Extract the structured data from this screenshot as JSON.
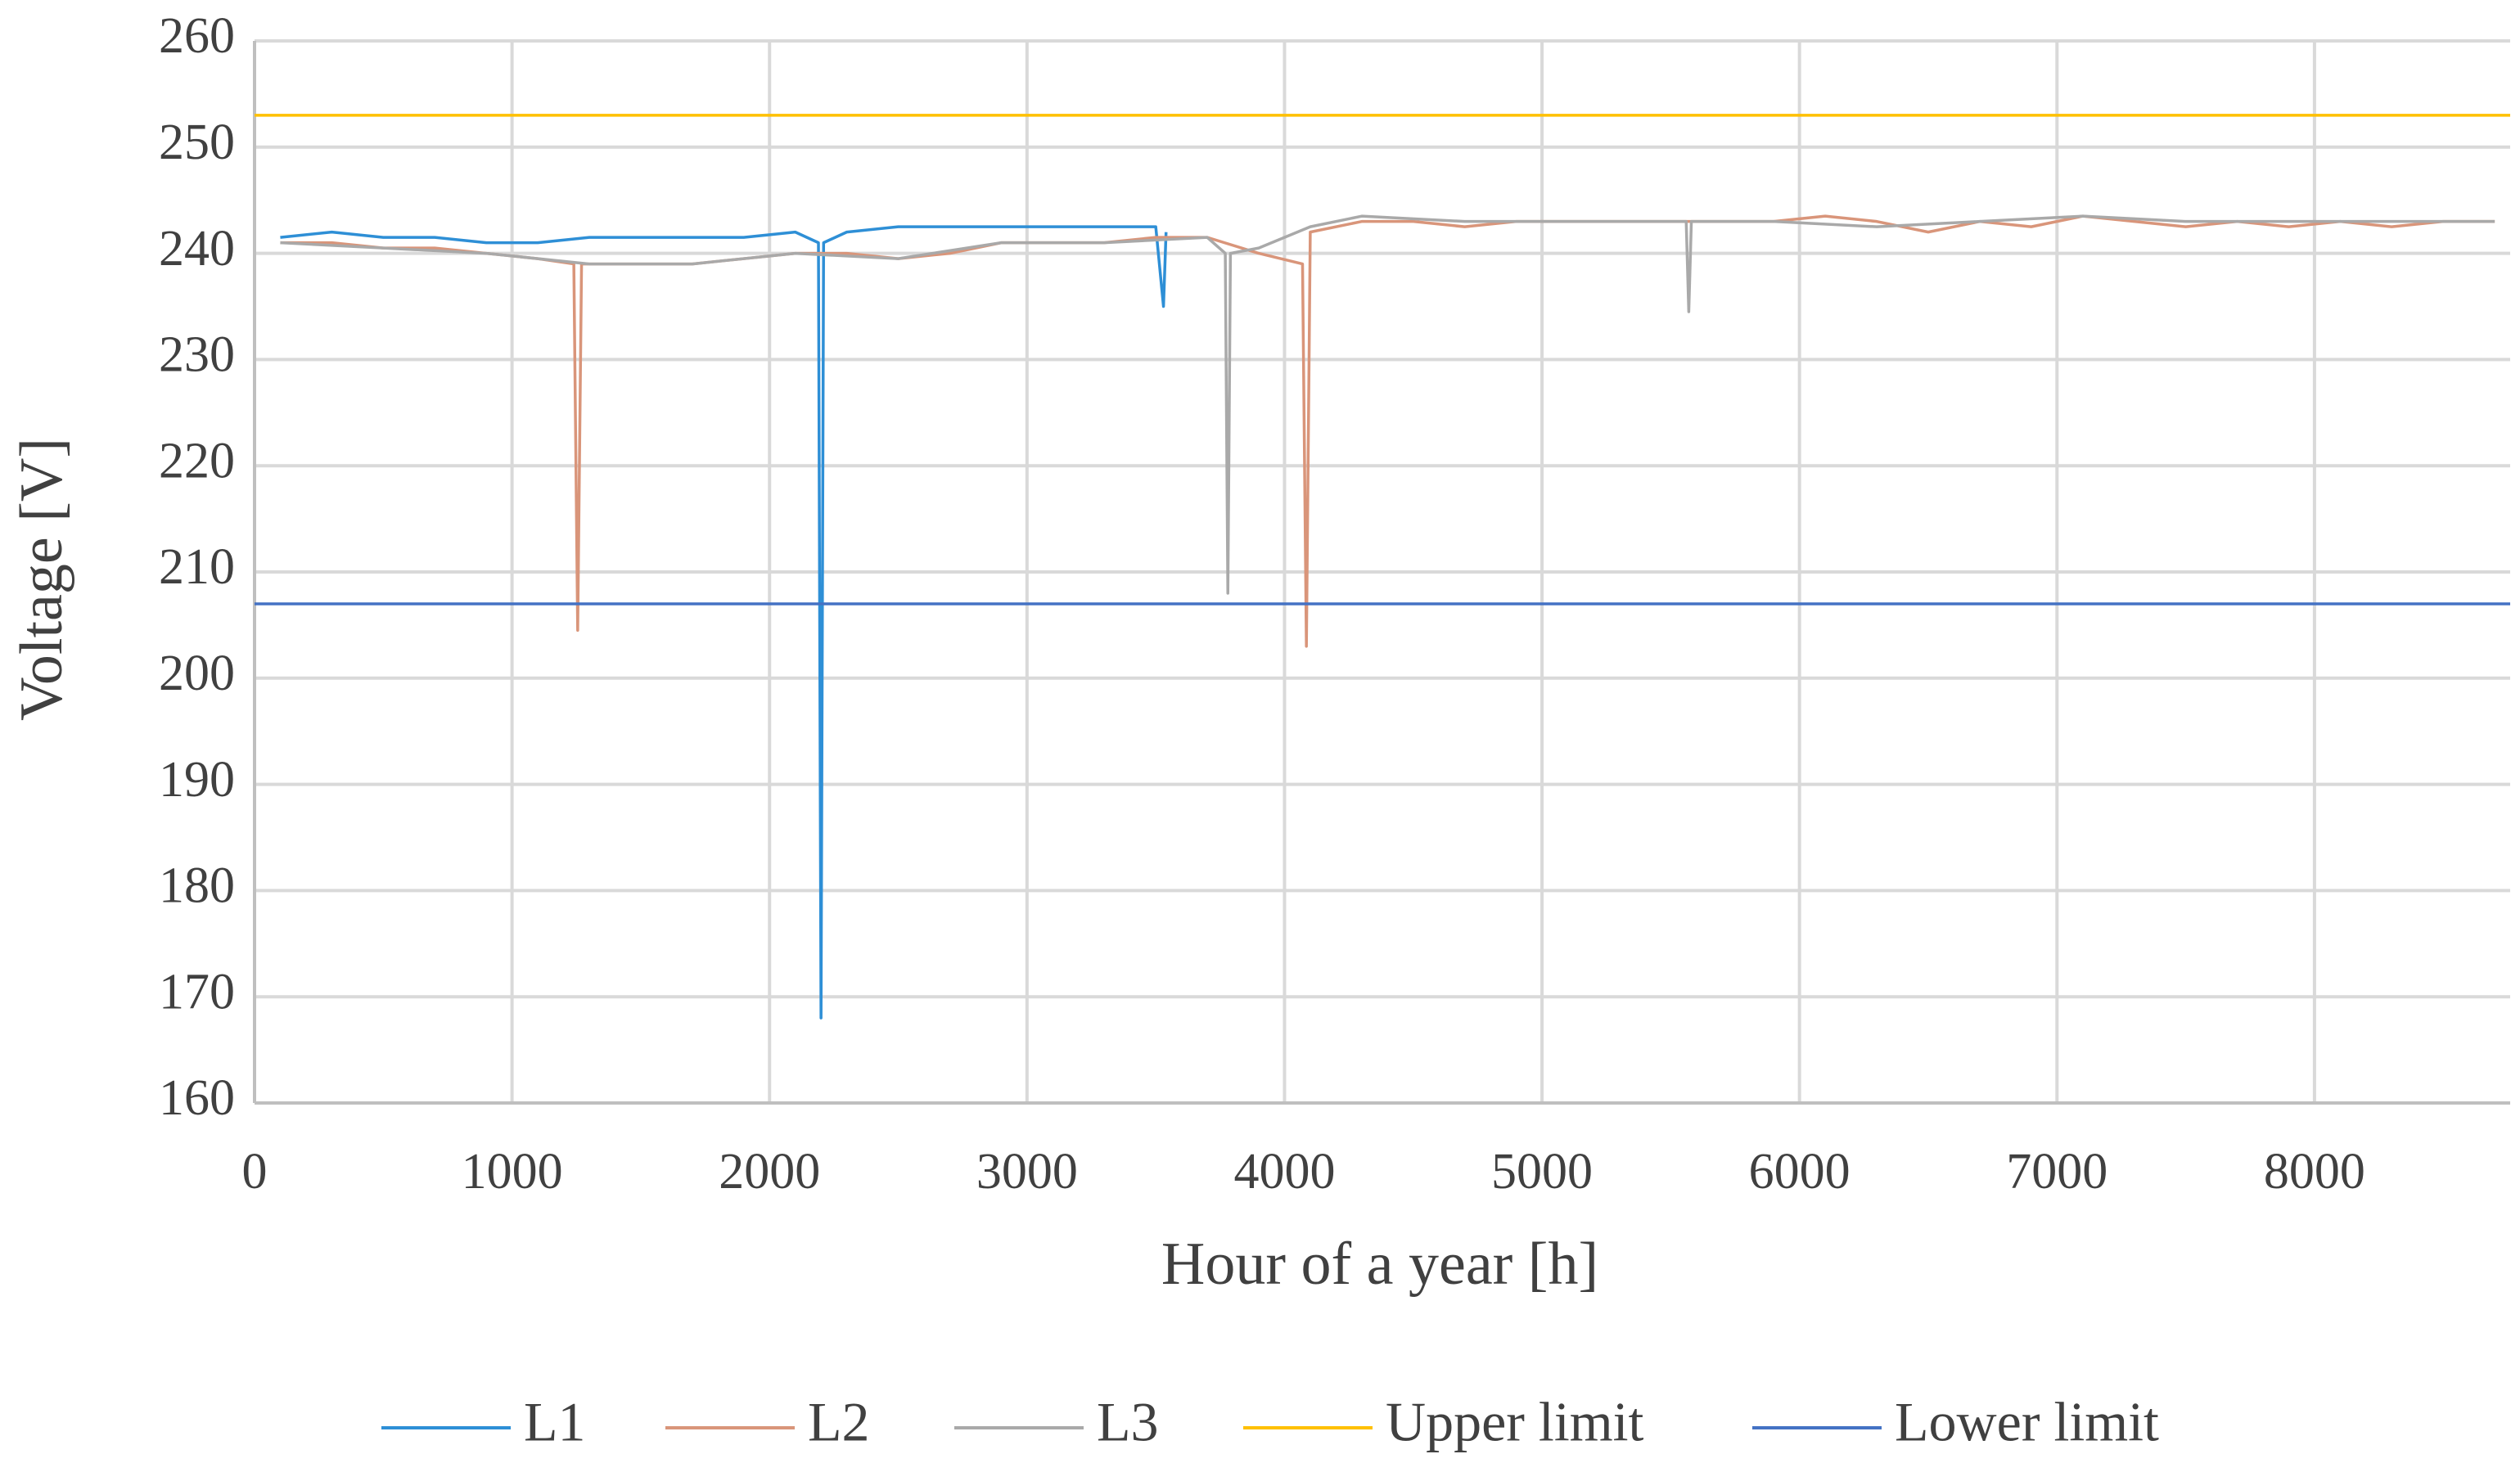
{
  "chart_data": {
    "type": "line",
    "x_label": "Hour of a year  [h]",
    "y_label": "Voltage [V]",
    "xlim": [
      0,
      8760
    ],
    "xticks": [
      0,
      1000,
      2000,
      3000,
      4000,
      5000,
      6000,
      7000,
      8000
    ],
    "ylim": [
      160,
      260
    ],
    "yticks": [
      160,
      170,
      180,
      190,
      200,
      210,
      220,
      230,
      240,
      250,
      260
    ],
    "grid": true,
    "legend": "bottom",
    "series": [
      {
        "name": "L1",
        "color": "#2e8fd6",
        "x": [
          100,
          300,
          500,
          700,
          900,
          1100,
          1300,
          1500,
          1700,
          1900,
          2100,
          2190,
          2200,
          2210,
          2300,
          2500,
          2700,
          2900,
          3100,
          3300,
          3500,
          3530,
          3540
        ],
        "values": [
          241.5,
          242,
          241.5,
          241.5,
          241,
          241,
          241.5,
          241.5,
          241.5,
          241.5,
          242,
          241,
          168,
          241,
          242,
          242.5,
          242.5,
          242.5,
          242.5,
          242.5,
          242.5,
          235,
          242
        ]
      },
      {
        "name": "L2",
        "color": "#d9957a",
        "x": [
          100,
          300,
          500,
          700,
          900,
          1100,
          1240,
          1255,
          1270,
          1300,
          1500,
          1700,
          1900,
          2100,
          2300,
          2500,
          2700,
          2900,
          3100,
          3300,
          3500,
          3700,
          3900,
          4070,
          4085,
          4100,
          4300,
          4500,
          4700,
          4900,
          5100,
          5300,
          5500,
          5700,
          5900,
          6100,
          6300,
          6500,
          6700,
          6900,
          7100,
          7300,
          7500,
          7700,
          7900,
          8100,
          8300,
          8500,
          8700
        ],
        "values": [
          241,
          241,
          240.5,
          240.5,
          240,
          239.5,
          239,
          204.5,
          239,
          239,
          239,
          239,
          239.5,
          240,
          240,
          239.5,
          240,
          241,
          241,
          241,
          241.5,
          241.5,
          240,
          239,
          203,
          242,
          243,
          243,
          242.5,
          243,
          243,
          243,
          243,
          243,
          243,
          243.5,
          243,
          242,
          243,
          242.5,
          243.5,
          243,
          242.5,
          243,
          242.5,
          243,
          242.5,
          243,
          243
        ]
      },
      {
        "name": "L3",
        "color": "#a9a9a9",
        "x": [
          100,
          500,
          900,
          1300,
          1700,
          2100,
          2500,
          2900,
          3300,
          3700,
          3770,
          3780,
          3790,
          3900,
          4100,
          4300,
          4700,
          5100,
          5500,
          5560,
          5570,
          5580,
          5900,
          6300,
          6700,
          7100,
          7500,
          7900,
          8300,
          8700
        ],
        "values": [
          241,
          240.5,
          240,
          239,
          239,
          240,
          239.5,
          241,
          241,
          241.5,
          240,
          208,
          240,
          240.5,
          242.5,
          243.5,
          243,
          243,
          243,
          243,
          234.5,
          243,
          243,
          242.5,
          243,
          243.5,
          243,
          243,
          243,
          243
        ]
      },
      {
        "name": "Upper limit",
        "color": "#ffc000",
        "x": [
          0,
          8760
        ],
        "values": [
          253,
          253
        ]
      },
      {
        "name": "Lower limit",
        "color": "#4472c4",
        "x": [
          0,
          8760
        ],
        "values": [
          207,
          207
        ]
      }
    ]
  }
}
